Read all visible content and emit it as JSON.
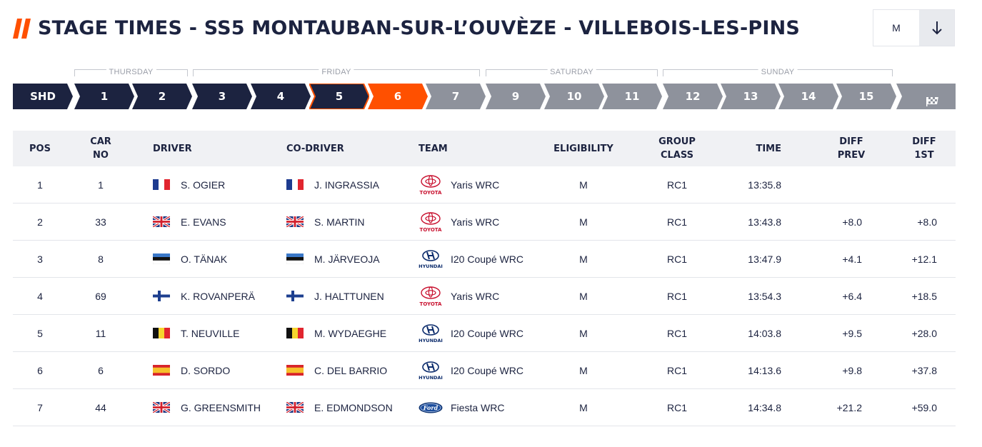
{
  "header": {
    "title": "STAGE TIMES - SS5 MONTAUBAN-SUR-L’OUVÈZE - VILLEBOIS-LES-PINS",
    "filter_value": "M",
    "accent": "#ff5000",
    "navy": "#1c2340"
  },
  "days": [
    "THURSDAY",
    "FRIDAY",
    "SATURDAY",
    "SUNDAY"
  ],
  "stages": [
    {
      "label": "SHD",
      "state": "done"
    },
    {
      "label": "1",
      "state": "done"
    },
    {
      "label": "2",
      "state": "done"
    },
    {
      "label": "3",
      "state": "done"
    },
    {
      "label": "4",
      "state": "done"
    },
    {
      "label": "5",
      "state": "selected"
    },
    {
      "label": "6",
      "state": "live"
    },
    {
      "label": "7",
      "state": "upcoming"
    },
    {
      "label": "9",
      "state": "upcoming"
    },
    {
      "label": "10",
      "state": "upcoming"
    },
    {
      "label": "11",
      "state": "upcoming"
    },
    {
      "label": "12",
      "state": "upcoming"
    },
    {
      "label": "13",
      "state": "upcoming"
    },
    {
      "label": "14",
      "state": "upcoming"
    },
    {
      "label": "15",
      "state": "upcoming"
    },
    {
      "label": "",
      "state": "finish",
      "icon": "checkered-flag-icon"
    }
  ],
  "table": {
    "headers": {
      "pos": "POS",
      "car_no_1": "CAR",
      "car_no_2": "NO",
      "driver": "DRIVER",
      "codriver": "CO-DRIVER",
      "team": "TEAM",
      "eligibility": "ELIGIBILITY",
      "group_1": "GROUP",
      "group_2": "CLASS",
      "time": "TIME",
      "diff_prev_1": "DIFF",
      "diff_prev_2": "PREV",
      "diff_1st_1": "DIFF",
      "diff_1st_2": "1ST"
    },
    "rows": [
      {
        "pos": "1",
        "car": "1",
        "flag": "france",
        "driver": "S. OGIER",
        "codriver_flag": "france",
        "codriver": "J. INGRASSIA",
        "brand": "toyota",
        "brand_text": "TOYOTA",
        "team": "Yaris WRC",
        "elig": "M",
        "class": "RC1",
        "time": "13:35.8",
        "diff_prev": "",
        "diff_first": ""
      },
      {
        "pos": "2",
        "car": "33",
        "flag": "uk",
        "driver": "E. EVANS",
        "codriver_flag": "uk",
        "codriver": "S. MARTIN",
        "brand": "toyota",
        "brand_text": "TOYOTA",
        "team": "Yaris WRC",
        "elig": "M",
        "class": "RC1",
        "time": "13:43.8",
        "diff_prev": "+8.0",
        "diff_first": "+8.0"
      },
      {
        "pos": "3",
        "car": "8",
        "flag": "estonia",
        "driver": "O. TÄNAK",
        "codriver_flag": "estonia",
        "codriver": "M. JÄRVEOJA",
        "brand": "hyundai",
        "brand_text": "HYUNDAI",
        "team": "I20 Coupé WRC",
        "elig": "M",
        "class": "RC1",
        "time": "13:47.9",
        "diff_prev": "+4.1",
        "diff_first": "+12.1"
      },
      {
        "pos": "4",
        "car": "69",
        "flag": "finland",
        "driver": "K. ROVANPERÄ",
        "codriver_flag": "finland",
        "codriver": "J. HALTTUNEN",
        "brand": "toyota",
        "brand_text": "TOYOTA",
        "team": "Yaris WRC",
        "elig": "M",
        "class": "RC1",
        "time": "13:54.3",
        "diff_prev": "+6.4",
        "diff_first": "+18.5"
      },
      {
        "pos": "5",
        "car": "11",
        "flag": "belgium",
        "driver": "T. NEUVILLE",
        "codriver_flag": "belgium",
        "codriver": "M. WYDAEGHE",
        "brand": "hyundai",
        "brand_text": "HYUNDAI",
        "team": "I20 Coupé WRC",
        "elig": "M",
        "class": "RC1",
        "time": "14:03.8",
        "diff_prev": "+9.5",
        "diff_first": "+28.0"
      },
      {
        "pos": "6",
        "car": "6",
        "flag": "spain",
        "driver": "D. SORDO",
        "codriver_flag": "spain",
        "codriver": "C. DEL BARRIO",
        "brand": "hyundai",
        "brand_text": "HYUNDAI",
        "team": "I20 Coupé WRC",
        "elig": "M",
        "class": "RC1",
        "time": "14:13.6",
        "diff_prev": "+9.8",
        "diff_first": "+37.8"
      },
      {
        "pos": "7",
        "car": "44",
        "flag": "uk",
        "driver": "G. GREENSMITH",
        "codriver_flag": "uk",
        "codriver": "E. EDMONDSON",
        "brand": "ford",
        "brand_text": "Ford",
        "team": "Fiesta WRC",
        "elig": "M",
        "class": "RC1",
        "time": "14:34.8",
        "diff_prev": "+21.2",
        "diff_first": "+59.0"
      }
    ]
  }
}
